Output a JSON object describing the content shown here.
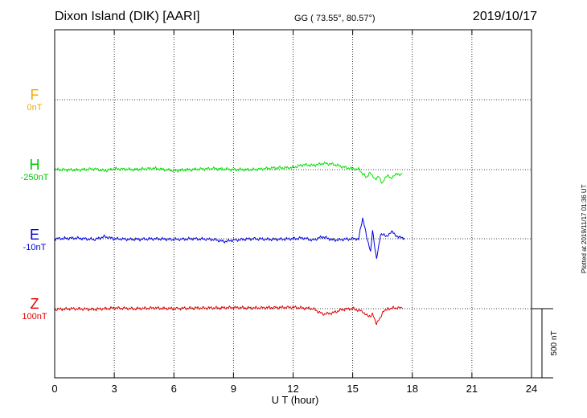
{
  "header": {
    "station": "Dixon Island (DIK)  [AARI]",
    "coords": "GG ( 73.55°,  80.57°)",
    "date": "2019/10/17"
  },
  "components": [
    {
      "letter": "F",
      "offset": "0nT",
      "color": "#f5a800"
    },
    {
      "letter": "H",
      "offset": "-250nT",
      "color": "#00c800"
    },
    {
      "letter": "E",
      "offset": "-10nT",
      "color": "#0000e0"
    },
    {
      "letter": "Z",
      "offset": "100nT",
      "color": "#e00000"
    }
  ],
  "scale_label": "500 nT",
  "plotted_note": "Plotted at 2019/11/17 01:36 UT",
  "chart_data": {
    "type": "line",
    "title": "Dixon Island (DIK)  [AARI]",
    "xlabel": "U T (hour)",
    "xlim": [
      0,
      24
    ],
    "xticks": [
      0,
      3,
      6,
      9,
      12,
      15,
      18,
      21,
      24
    ],
    "grid": true,
    "scale_bar_nT": 500,
    "series": [
      {
        "name": "F",
        "color": "#f5a800",
        "offset_nT": 0,
        "x": [],
        "y": []
      },
      {
        "name": "H",
        "color": "#00e000",
        "offset_nT": -250,
        "x": [
          0,
          1,
          2,
          2.5,
          3,
          4,
          5,
          6,
          7,
          8,
          9,
          10,
          11,
          12,
          12.5,
          13,
          13.5,
          14,
          14.5,
          15,
          15.3,
          15.5,
          15.7,
          15.9,
          16.1,
          16.3,
          16.5,
          16.7,
          16.9,
          17.2,
          17.5
        ],
        "y": [
          0,
          -3,
          5,
          -8,
          6,
          0,
          10,
          -8,
          2,
          8,
          0,
          0,
          12,
          15,
          35,
          30,
          45,
          40,
          20,
          5,
          5,
          -30,
          -55,
          -20,
          -70,
          -50,
          -100,
          -40,
          -60,
          -35,
          -30
        ]
      },
      {
        "name": "E",
        "color": "#0000e0",
        "offset_nT": -10,
        "x": [
          0,
          1,
          2,
          2.5,
          3,
          4,
          5,
          6,
          7,
          8,
          8.5,
          9,
          10,
          11,
          12,
          12.5,
          13,
          13.5,
          14,
          15,
          15.3,
          15.5,
          15.7,
          15.9,
          16,
          16.2,
          16.4,
          16.7,
          17,
          17.3,
          17.6
        ],
        "y": [
          0,
          5,
          -5,
          15,
          0,
          -5,
          0,
          -5,
          0,
          -5,
          -20,
          -10,
          0,
          -5,
          0,
          5,
          -10,
          15,
          -10,
          0,
          0,
          150,
          20,
          -100,
          60,
          -150,
          30,
          20,
          50,
          10,
          5
        ]
      },
      {
        "name": "Z",
        "color": "#e00000",
        "offset_nT": 100,
        "x": [
          0,
          1,
          2,
          3,
          4,
          5,
          6,
          7,
          8,
          9,
          10,
          11,
          12,
          12.5,
          13,
          13.5,
          14,
          14.5,
          15,
          15.5,
          15.8,
          16,
          16.2,
          16.4,
          16.6,
          17,
          17.5
        ],
        "y": [
          -5,
          0,
          -5,
          5,
          0,
          5,
          0,
          5,
          5,
          8,
          5,
          8,
          10,
          5,
          0,
          -40,
          -30,
          -5,
          0,
          -20,
          -60,
          -40,
          -110,
          -60,
          -10,
          5,
          5
        ]
      }
    ]
  }
}
